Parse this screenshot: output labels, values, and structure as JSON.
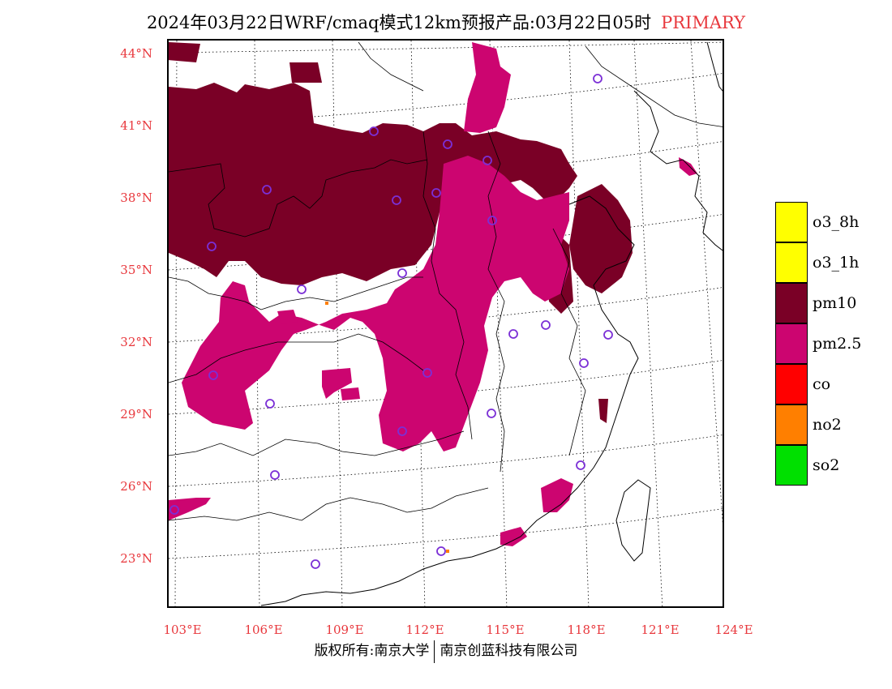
{
  "title": {
    "main": "2024年03月22日WRF/cmaq模式12km预报产品:03月22日05时",
    "tag": "PRIMARY"
  },
  "axes": {
    "lat_labels": [
      "44°N",
      "41°N",
      "38°N",
      "35°N",
      "32°N",
      "29°N",
      "26°N",
      "23°N"
    ],
    "lon_labels": [
      "103°E",
      "106°E",
      "109°E",
      "112°E",
      "115°E",
      "118°E",
      "121°E",
      "124°E"
    ]
  },
  "legend": {
    "items": [
      {
        "label": "o3_8h",
        "color": "#ffff00"
      },
      {
        "label": "o3_1h",
        "color": "#ffff00"
      },
      {
        "label": "pm10",
        "color": "#7a0026"
      },
      {
        "label": "pm2.5",
        "color": "#cc0570"
      },
      {
        "label": "co",
        "color": "#ff0000"
      },
      {
        "label": "no2",
        "color": "#ff7f00"
      },
      {
        "label": "so2",
        "color": "#00e000"
      }
    ]
  },
  "footer": {
    "left": "版权所有:南京大学",
    "right": "南京创蓝科技有限公司"
  },
  "colors": {
    "label_red": "#e8383d",
    "pm10": "#7a0026",
    "pm25": "#cc0570",
    "station": "#7b2fd6",
    "no2": "#ff7f00"
  }
}
